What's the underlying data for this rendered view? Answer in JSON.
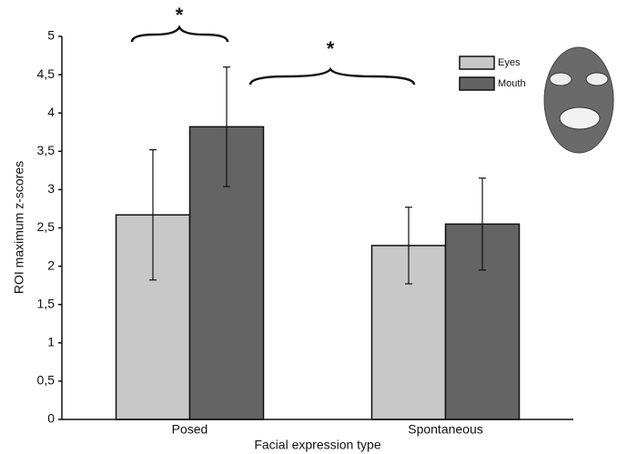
{
  "chart_data": {
    "type": "bar",
    "x_label": "Facial expression type",
    "y_label": "ROI maximum z-scores",
    "categories": [
      "Posed",
      "Spontaneous"
    ],
    "series": [
      {
        "name": "Eyes",
        "color": "#c8c8c8",
        "values": [
          2.67,
          2.27
        ],
        "errors": [
          0.85,
          0.5
        ]
      },
      {
        "name": "Mouth",
        "color": "#646464",
        "values": [
          3.82,
          2.55
        ],
        "errors": [
          0.78,
          0.6
        ]
      }
    ],
    "ylim": [
      0,
      5
    ],
    "yticks": [
      0,
      {
        "value": 0.5,
        "label": "0,5"
      },
      1,
      {
        "value": 1.5,
        "label": "1,5"
      },
      2,
      {
        "value": 2.5,
        "label": "2,5"
      },
      3,
      {
        "value": 3.5,
        "label": "3,5"
      },
      4,
      {
        "value": 4.5,
        "label": "4,5"
      },
      5
    ],
    "grid": false,
    "annotations": [
      "*",
      "*"
    ]
  }
}
